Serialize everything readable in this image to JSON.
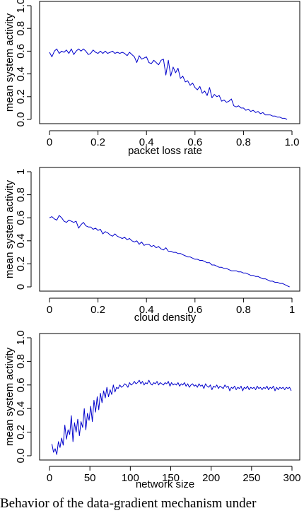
{
  "chart_data": [
    {
      "type": "line",
      "title": "",
      "xlabel": "packet loss rate",
      "ylabel": "mean system activity",
      "xlim": [
        0,
        1
      ],
      "ylim": [
        0,
        1
      ],
      "xticks": [
        "0",
        "0.2",
        "0.4",
        "0.6",
        "0.8",
        "1.0"
      ],
      "yticks": [
        "0.0",
        "0.2",
        "0.4",
        "0.6",
        "0.8",
        "1.0"
      ],
      "grid": false,
      "series_color": "#0000cc",
      "series": [
        {
          "x": [
            0.0,
            0.01,
            0.02,
            0.03,
            0.04,
            0.05,
            0.06,
            0.07,
            0.08,
            0.09,
            0.1,
            0.11,
            0.12,
            0.13,
            0.14,
            0.15,
            0.16,
            0.17,
            0.18,
            0.19,
            0.2,
            0.21,
            0.22,
            0.23,
            0.24,
            0.25,
            0.26,
            0.27,
            0.28,
            0.29,
            0.3,
            0.31,
            0.32,
            0.33,
            0.34,
            0.35,
            0.36,
            0.37,
            0.38,
            0.39,
            0.4,
            0.41,
            0.42,
            0.43,
            0.44,
            0.45,
            0.46,
            0.47,
            0.48,
            0.49,
            0.5,
            0.51,
            0.52,
            0.53,
            0.54,
            0.55,
            0.56,
            0.57,
            0.58,
            0.59,
            0.6,
            0.61,
            0.62,
            0.63,
            0.64,
            0.65,
            0.66,
            0.67,
            0.68,
            0.69,
            0.7,
            0.71,
            0.72,
            0.73,
            0.74,
            0.75,
            0.76,
            0.77,
            0.78,
            0.79,
            0.8,
            0.81,
            0.82,
            0.83,
            0.84,
            0.85,
            0.86,
            0.87,
            0.88,
            0.89,
            0.9,
            0.91,
            0.92,
            0.93,
            0.94,
            0.95,
            0.96,
            0.97,
            0.98
          ],
          "values": [
            0.59,
            0.55,
            0.6,
            0.62,
            0.58,
            0.6,
            0.59,
            0.61,
            0.58,
            0.62,
            0.57,
            0.6,
            0.62,
            0.6,
            0.62,
            0.6,
            0.57,
            0.58,
            0.61,
            0.59,
            0.58,
            0.6,
            0.58,
            0.6,
            0.58,
            0.59,
            0.6,
            0.58,
            0.59,
            0.58,
            0.59,
            0.58,
            0.56,
            0.59,
            0.57,
            0.55,
            0.5,
            0.56,
            0.53,
            0.54,
            0.55,
            0.5,
            0.49,
            0.52,
            0.5,
            0.48,
            0.52,
            0.53,
            0.39,
            0.52,
            0.38,
            0.46,
            0.41,
            0.45,
            0.36,
            0.38,
            0.33,
            0.34,
            0.3,
            0.32,
            0.28,
            0.26,
            0.29,
            0.23,
            0.25,
            0.21,
            0.28,
            0.19,
            0.22,
            0.2,
            0.21,
            0.16,
            0.17,
            0.15,
            0.16,
            0.18,
            0.12,
            0.11,
            0.12,
            0.1,
            0.1,
            0.08,
            0.09,
            0.07,
            0.08,
            0.06,
            0.07,
            0.05,
            0.06,
            0.04,
            0.04,
            0.04,
            0.03,
            0.03,
            0.02,
            0.02,
            0.01,
            0.01,
            0.0
          ]
        }
      ]
    },
    {
      "type": "line",
      "title": "",
      "xlabel": "cloud density",
      "ylabel": "mean system activity",
      "xlim": [
        0,
        1
      ],
      "ylim": [
        0,
        1
      ],
      "xticks": [
        "0",
        "0.2",
        "0.4",
        "0.6",
        "0.8",
        "1"
      ],
      "yticks": [
        "0",
        "0.2",
        "0.4",
        "0.6",
        "0.8",
        "1"
      ],
      "grid": false,
      "series_color": "#0000cc",
      "series": [
        {
          "x": [
            0.0,
            0.01,
            0.02,
            0.03,
            0.04,
            0.05,
            0.06,
            0.07,
            0.08,
            0.09,
            0.1,
            0.11,
            0.12,
            0.13,
            0.14,
            0.15,
            0.16,
            0.17,
            0.18,
            0.19,
            0.2,
            0.21,
            0.22,
            0.23,
            0.24,
            0.25,
            0.26,
            0.27,
            0.28,
            0.29,
            0.3,
            0.31,
            0.32,
            0.33,
            0.34,
            0.35,
            0.36,
            0.37,
            0.38,
            0.39,
            0.4,
            0.41,
            0.42,
            0.43,
            0.44,
            0.45,
            0.46,
            0.47,
            0.48,
            0.49,
            0.5,
            0.51,
            0.52,
            0.53,
            0.54,
            0.55,
            0.56,
            0.57,
            0.58,
            0.59,
            0.6,
            0.61,
            0.62,
            0.63,
            0.64,
            0.65,
            0.66,
            0.67,
            0.68,
            0.69,
            0.7,
            0.71,
            0.72,
            0.73,
            0.74,
            0.75,
            0.76,
            0.77,
            0.78,
            0.79,
            0.8,
            0.81,
            0.82,
            0.83,
            0.84,
            0.85,
            0.86,
            0.87,
            0.88,
            0.89,
            0.9,
            0.91,
            0.92,
            0.93,
            0.94,
            0.95,
            0.96,
            0.97,
            0.98,
            0.99
          ],
          "values": [
            0.6,
            0.61,
            0.59,
            0.58,
            0.62,
            0.6,
            0.57,
            0.56,
            0.58,
            0.57,
            0.56,
            0.57,
            0.51,
            0.54,
            0.56,
            0.53,
            0.52,
            0.52,
            0.5,
            0.51,
            0.49,
            0.5,
            0.46,
            0.48,
            0.47,
            0.45,
            0.44,
            0.46,
            0.44,
            0.43,
            0.42,
            0.43,
            0.41,
            0.42,
            0.4,
            0.39,
            0.4,
            0.37,
            0.39,
            0.36,
            0.37,
            0.37,
            0.35,
            0.36,
            0.34,
            0.35,
            0.33,
            0.32,
            0.34,
            0.31,
            0.31,
            0.3,
            0.3,
            0.29,
            0.29,
            0.28,
            0.27,
            0.26,
            0.26,
            0.25,
            0.24,
            0.24,
            0.23,
            0.23,
            0.22,
            0.21,
            0.21,
            0.19,
            0.19,
            0.18,
            0.17,
            0.17,
            0.16,
            0.16,
            0.15,
            0.14,
            0.14,
            0.14,
            0.13,
            0.13,
            0.12,
            0.12,
            0.11,
            0.1,
            0.1,
            0.09,
            0.09,
            0.08,
            0.07,
            0.07,
            0.06,
            0.05,
            0.05,
            0.04,
            0.04,
            0.03,
            0.03,
            0.02,
            0.01,
            0.0
          ]
        }
      ]
    },
    {
      "type": "line",
      "title": "",
      "xlabel": "network size",
      "ylabel": "mean system activity",
      "xlim": [
        0,
        300
      ],
      "ylim": [
        0,
        1
      ],
      "xticks": [
        "0",
        "50",
        "100",
        "150",
        "200",
        "250",
        "300"
      ],
      "yticks": [
        "0.0",
        "0.2",
        "0.4",
        "0.6",
        "0.8",
        "1.0"
      ],
      "grid": false,
      "series_color": "#0000cc",
      "series": [
        {
          "x": [
            3,
            5,
            7,
            9,
            11,
            13,
            15,
            17,
            19,
            21,
            23,
            25,
            27,
            29,
            31,
            33,
            35,
            37,
            39,
            41,
            43,
            45,
            47,
            49,
            51,
            53,
            55,
            57,
            59,
            61,
            63,
            65,
            67,
            69,
            71,
            73,
            75,
            77,
            79,
            81,
            83,
            85,
            87,
            89,
            91,
            93,
            95,
            97,
            99,
            101,
            103,
            105,
            107,
            109,
            111,
            113,
            115,
            117,
            119,
            121,
            123,
            125,
            127,
            129,
            131,
            133,
            135,
            137,
            139,
            141,
            143,
            145,
            147,
            149,
            151,
            153,
            155,
            157,
            159,
            161,
            163,
            165,
            167,
            169,
            171,
            173,
            175,
            177,
            179,
            181,
            183,
            185,
            187,
            189,
            191,
            193,
            195,
            197,
            199,
            201,
            203,
            205,
            207,
            209,
            211,
            213,
            215,
            217,
            219,
            221,
            223,
            225,
            227,
            229,
            231,
            233,
            235,
            237,
            239,
            241,
            243,
            245,
            247,
            249,
            251,
            253,
            255,
            257,
            259,
            261,
            263,
            265,
            267,
            269,
            271,
            273,
            275,
            277,
            279,
            281,
            283,
            285,
            287,
            289,
            291,
            293,
            295,
            297,
            299
          ],
          "values": [
            0.1,
            0.03,
            0.06,
            0.01,
            0.12,
            0.07,
            0.15,
            0.09,
            0.26,
            0.14,
            0.22,
            0.18,
            0.34,
            0.12,
            0.28,
            0.2,
            0.31,
            0.17,
            0.29,
            0.24,
            0.4,
            0.22,
            0.36,
            0.3,
            0.42,
            0.29,
            0.47,
            0.37,
            0.5,
            0.39,
            0.53,
            0.45,
            0.55,
            0.49,
            0.58,
            0.5,
            0.56,
            0.52,
            0.6,
            0.54,
            0.58,
            0.57,
            0.6,
            0.58,
            0.59,
            0.61,
            0.6,
            0.58,
            0.62,
            0.6,
            0.61,
            0.63,
            0.61,
            0.62,
            0.64,
            0.61,
            0.63,
            0.6,
            0.62,
            0.61,
            0.64,
            0.61,
            0.6,
            0.62,
            0.61,
            0.63,
            0.6,
            0.62,
            0.61,
            0.6,
            0.62,
            0.61,
            0.63,
            0.59,
            0.62,
            0.6,
            0.61,
            0.6,
            0.62,
            0.59,
            0.61,
            0.6,
            0.62,
            0.59,
            0.61,
            0.58,
            0.6,
            0.61,
            0.59,
            0.6,
            0.58,
            0.61,
            0.59,
            0.6,
            0.57,
            0.61,
            0.59,
            0.58,
            0.6,
            0.56,
            0.59,
            0.58,
            0.6,
            0.57,
            0.59,
            0.58,
            0.57,
            0.6,
            0.58,
            0.59,
            0.55,
            0.58,
            0.57,
            0.59,
            0.56,
            0.58,
            0.57,
            0.59,
            0.55,
            0.58,
            0.57,
            0.59,
            0.56,
            0.58,
            0.57,
            0.58,
            0.56,
            0.59,
            0.57,
            0.58,
            0.56,
            0.58,
            0.57,
            0.59,
            0.56,
            0.58,
            0.57,
            0.59,
            0.55,
            0.58,
            0.56,
            0.58,
            0.57,
            0.58,
            0.56,
            0.58,
            0.57,
            0.58,
            0.55
          ]
        }
      ]
    }
  ],
  "caption": "Behavior of the data-gradient mechanism under"
}
